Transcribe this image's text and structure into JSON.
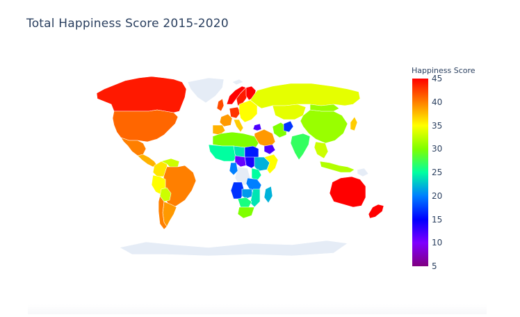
{
  "chart": {
    "title": "Total Happiness Score 2015-2020",
    "colorbar": {
      "title": "Happiness Score",
      "min": 5,
      "max": 45,
      "ticks": [
        "45",
        "40",
        "35",
        "30",
        "25",
        "20",
        "15",
        "10",
        "5"
      ],
      "colors_top_to_bottom": [
        "#ff0000",
        "#ff7f00",
        "#ffff00",
        "#7fff00",
        "#00ffa0",
        "#007fff",
        "#0000ff",
        "#7f00ff",
        "#800080"
      ]
    },
    "missing_color": "#e5ecf6"
  },
  "chart_data": {
    "type": "choropleth",
    "title": "Total Happiness Score 2015-2020",
    "colorbar_title": "Happiness Score",
    "range": [
      5,
      45
    ],
    "regions": [
      {
        "name": "Canada",
        "value": 44
      },
      {
        "name": "United States",
        "value": 41
      },
      {
        "name": "Mexico",
        "value": 40
      },
      {
        "name": "Central America",
        "value": 38
      },
      {
        "name": "Colombia",
        "value": 36
      },
      {
        "name": "Venezuela",
        "value": 33
      },
      {
        "name": "Brazil",
        "value": 40
      },
      {
        "name": "Peru",
        "value": 35
      },
      {
        "name": "Bolivia",
        "value": 33
      },
      {
        "name": "Argentina",
        "value": 39
      },
      {
        "name": "Chile",
        "value": 40
      },
      {
        "name": "Norway",
        "value": 45
      },
      {
        "name": "Sweden",
        "value": 44
      },
      {
        "name": "Finland",
        "value": 45
      },
      {
        "name": "United Kingdom",
        "value": 42
      },
      {
        "name": "France",
        "value": 39
      },
      {
        "name": "Spain",
        "value": 38
      },
      {
        "name": "Germany",
        "value": 43
      },
      {
        "name": "Italy",
        "value": 37
      },
      {
        "name": "Eastern Europe",
        "value": 35
      },
      {
        "name": "Russia",
        "value": 34
      },
      {
        "name": "Kazakhstan",
        "value": 34
      },
      {
        "name": "China",
        "value": 31
      },
      {
        "name": "Mongolia",
        "value": 31
      },
      {
        "name": "Japan",
        "value": 37
      },
      {
        "name": "India",
        "value": 27
      },
      {
        "name": "Iran",
        "value": 30
      },
      {
        "name": "Saudi Arabia",
        "value": 39
      },
      {
        "name": "Afghanistan",
        "value": 17
      },
      {
        "name": "Yemen",
        "value": 12
      },
      {
        "name": "Syria",
        "value": 12
      },
      {
        "name": "Southeast Asia",
        "value": 33
      },
      {
        "name": "Indonesia",
        "value": 32
      },
      {
        "name": "Australia",
        "value": 45
      },
      {
        "name": "New Zealand",
        "value": 45
      },
      {
        "name": "North Africa",
        "value": 30
      },
      {
        "name": "West Africa",
        "value": 25
      },
      {
        "name": "Chad",
        "value": 24
      },
      {
        "name": "Sudan",
        "value": 16
      },
      {
        "name": "South Sudan",
        "value": 14
      },
      {
        "name": "Ethiopia",
        "value": 22
      },
      {
        "name": "Somalia",
        "value": 35
      },
      {
        "name": "Central African Republic",
        "value": 11
      },
      {
        "name": "Kenya",
        "value": 25
      },
      {
        "name": "Tanzania",
        "value": 20
      },
      {
        "name": "Congo",
        "value": 20
      },
      {
        "name": "Angola",
        "value": 17
      },
      {
        "name": "Zambia",
        "value": 21
      },
      {
        "name": "Mozambique",
        "value": 24
      },
      {
        "name": "Madagascar",
        "value": 22
      },
      {
        "name": "Southern Africa",
        "value": 26
      },
      {
        "name": "South Africa",
        "value": 30
      }
    ],
    "no_data": [
      "Greenland",
      "Antarctica",
      "DR Congo",
      "Papua New Guinea"
    ]
  }
}
